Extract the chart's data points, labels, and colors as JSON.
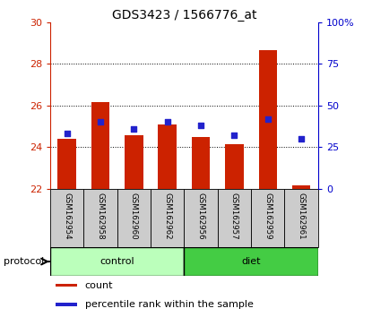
{
  "title": "GDS3423 / 1566776_at",
  "samples": [
    "GSM162954",
    "GSM162958",
    "GSM162960",
    "GSM162962",
    "GSM162956",
    "GSM162957",
    "GSM162959",
    "GSM162961"
  ],
  "bar_bottoms": [
    22,
    22,
    22,
    22,
    22,
    22,
    22,
    22
  ],
  "bar_tops": [
    24.4,
    26.15,
    24.55,
    25.1,
    24.5,
    24.15,
    28.65,
    22.15
  ],
  "percentile_values": [
    33,
    40,
    36,
    40,
    38,
    32,
    42,
    30
  ],
  "ylim_left": [
    22,
    30
  ],
  "ylim_right": [
    0,
    100
  ],
  "yticks_left": [
    22,
    24,
    26,
    28,
    30
  ],
  "yticks_right": [
    0,
    25,
    50,
    75,
    100
  ],
  "ytick_labels_right": [
    "0",
    "25",
    "50",
    "75",
    "100%"
  ],
  "bar_color": "#cc2200",
  "blue_color": "#2222cc",
  "control_color": "#bbffbb",
  "diet_color": "#44cc44",
  "label_color_left": "#cc2200",
  "label_color_right": "#0000cc",
  "bg_color": "#ffffff",
  "sample_bg": "#cccccc",
  "protocol_label": "protocol",
  "group_labels": [
    "control",
    "diet"
  ],
  "legend_count": "count",
  "legend_percentile": "percentile rank within the sample",
  "bar_width": 0.55,
  "control_n": 4,
  "diet_n": 4
}
